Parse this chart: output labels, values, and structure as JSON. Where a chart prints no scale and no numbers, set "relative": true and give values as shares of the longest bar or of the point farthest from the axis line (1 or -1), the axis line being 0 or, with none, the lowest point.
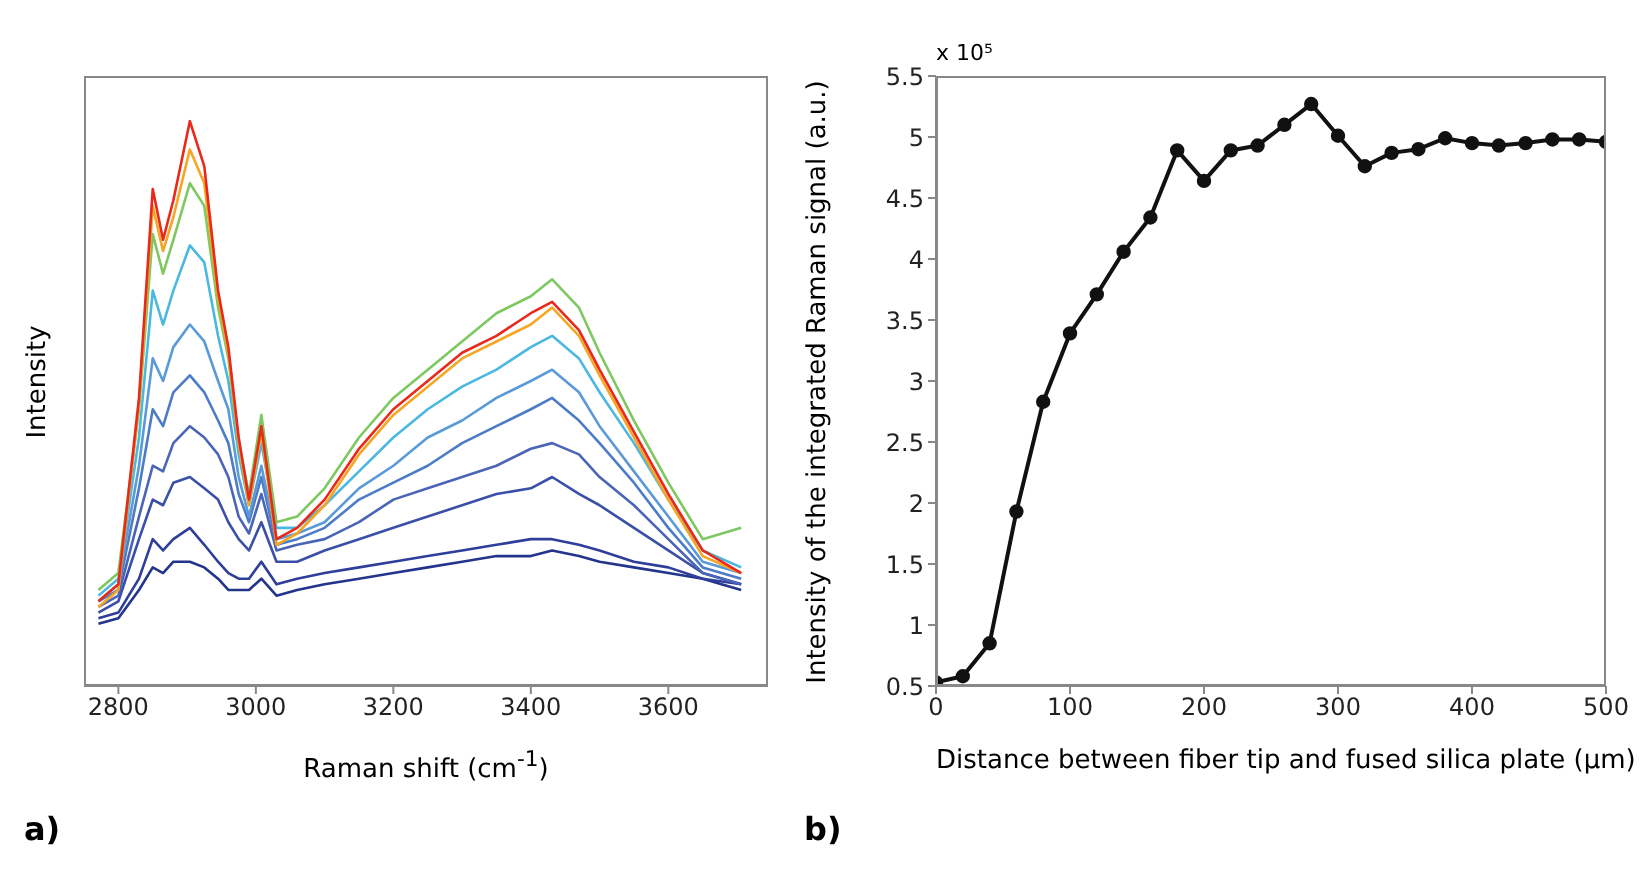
{
  "chart_data": [
    {
      "type": "line",
      "relative": true,
      "xlabel": "Raman shift (cm$^{-1}$)",
      "ylabel": "Intensity",
      "annotations": [
        "a)"
      ],
      "xlim": [
        2750,
        3745
      ],
      "xticks": [
        2800,
        3000,
        3200,
        3400,
        3600
      ],
      "tick_labels": "x",
      "grid": false,
      "legend": false,
      "marker": "none",
      "x": [
        2771,
        2800,
        2830,
        2850,
        2865,
        2880,
        2904,
        2925,
        2945,
        2960,
        2975,
        2990,
        3008,
        3030,
        3060,
        3100,
        3150,
        3200,
        3250,
        3300,
        3350,
        3400,
        3431,
        3470,
        3500,
        3550,
        3600,
        3650,
        3706
      ],
      "series": [
        {
          "color": "#22348c",
          "values": [
            0.11,
            0.12,
            0.17,
            0.21,
            0.2,
            0.22,
            0.22,
            0.21,
            0.19,
            0.17,
            0.17,
            0.17,
            0.19,
            0.16,
            0.17,
            0.18,
            0.19,
            0.2,
            0.21,
            0.22,
            0.23,
            0.23,
            0.24,
            0.23,
            0.22,
            0.21,
            0.2,
            0.19,
            0.17
          ]
        },
        {
          "color": "#2e3e9a",
          "values": [
            0.12,
            0.13,
            0.19,
            0.26,
            0.24,
            0.26,
            0.28,
            0.25,
            0.22,
            0.2,
            0.19,
            0.19,
            0.22,
            0.18,
            0.19,
            0.2,
            0.21,
            0.22,
            0.23,
            0.24,
            0.25,
            0.26,
            0.26,
            0.25,
            0.24,
            0.22,
            0.21,
            0.19,
            0.18
          ]
        },
        {
          "color": "#3a50a8",
          "values": [
            0.13,
            0.15,
            0.26,
            0.33,
            0.32,
            0.36,
            0.37,
            0.35,
            0.33,
            0.29,
            0.26,
            0.24,
            0.29,
            0.22,
            0.22,
            0.24,
            0.26,
            0.28,
            0.3,
            0.32,
            0.34,
            0.35,
            0.37,
            0.34,
            0.32,
            0.28,
            0.24,
            0.2,
            0.18
          ]
        },
        {
          "color": "#4a64b8",
          "values": [
            0.14,
            0.16,
            0.3,
            0.39,
            0.38,
            0.43,
            0.46,
            0.44,
            0.41,
            0.37,
            0.3,
            0.27,
            0.34,
            0.24,
            0.25,
            0.26,
            0.29,
            0.33,
            0.35,
            0.37,
            0.39,
            0.42,
            0.43,
            0.41,
            0.37,
            0.32,
            0.26,
            0.2,
            0.18
          ]
        },
        {
          "color": "#4c7cc8",
          "values": [
            0.15,
            0.17,
            0.35,
            0.49,
            0.46,
            0.52,
            0.55,
            0.52,
            0.47,
            0.43,
            0.34,
            0.29,
            0.37,
            0.25,
            0.26,
            0.28,
            0.33,
            0.36,
            0.39,
            0.43,
            0.46,
            0.49,
            0.51,
            0.47,
            0.43,
            0.36,
            0.28,
            0.21,
            0.19
          ]
        },
        {
          "color": "#5a9ad8",
          "values": [
            0.15,
            0.18,
            0.39,
            0.58,
            0.54,
            0.6,
            0.64,
            0.61,
            0.54,
            0.49,
            0.37,
            0.3,
            0.39,
            0.26,
            0.27,
            0.29,
            0.35,
            0.39,
            0.44,
            0.47,
            0.51,
            0.54,
            0.56,
            0.52,
            0.46,
            0.38,
            0.3,
            0.22,
            0.2
          ]
        },
        {
          "color": "#4ab8e0",
          "values": [
            0.16,
            0.19,
            0.44,
            0.7,
            0.64,
            0.7,
            0.78,
            0.75,
            0.62,
            0.54,
            0.41,
            0.32,
            0.43,
            0.28,
            0.28,
            0.32,
            0.38,
            0.44,
            0.49,
            0.53,
            0.56,
            0.6,
            0.62,
            0.58,
            0.52,
            0.43,
            0.33,
            0.24,
            0.21
          ]
        },
        {
          "color": "#7ec860",
          "values": [
            0.17,
            0.2,
            0.49,
            0.8,
            0.73,
            0.79,
            0.89,
            0.85,
            0.67,
            0.58,
            0.43,
            0.34,
            0.48,
            0.29,
            0.3,
            0.35,
            0.44,
            0.51,
            0.56,
            0.61,
            0.66,
            0.69,
            0.72,
            0.67,
            0.59,
            0.47,
            0.36,
            0.26,
            0.28
          ]
        },
        {
          "color": "#f5a623",
          "values": [
            0.14,
            0.17,
            0.5,
            0.85,
            0.77,
            0.83,
            0.95,
            0.89,
            0.69,
            0.59,
            0.43,
            0.32,
            0.45,
            0.25,
            0.27,
            0.32,
            0.41,
            0.48,
            0.53,
            0.58,
            0.61,
            0.64,
            0.67,
            0.62,
            0.55,
            0.44,
            0.33,
            0.23,
            0.2
          ]
        },
        {
          "color": "#e8291c",
          "values": [
            0.15,
            0.18,
            0.51,
            0.88,
            0.79,
            0.86,
            1,
            0.92,
            0.7,
            0.6,
            0.44,
            0.33,
            0.46,
            0.26,
            0.28,
            0.33,
            0.42,
            0.49,
            0.54,
            0.59,
            0.62,
            0.66,
            0.68,
            0.63,
            0.56,
            0.45,
            0.34,
            0.24,
            0.2
          ]
        }
      ]
    },
    {
      "type": "line",
      "xlabel": "Distance between fiber tip and fused silica plate (µm)",
      "ylabel": "Intensity of the integrated Raman signal (a.u.)",
      "annotations": [
        "x 10⁵",
        "b)"
      ],
      "xlim": [
        0,
        500
      ],
      "xticks": [
        0,
        100,
        200,
        300,
        400,
        500
      ],
      "ylim": [
        0.5,
        5.5
      ],
      "yticks": [
        0.5,
        1,
        1.5,
        2,
        2.5,
        3,
        3.5,
        4,
        4.5,
        5,
        5.5
      ],
      "grid": false,
      "legend": false,
      "marker": "circle",
      "x": [
        0,
        20,
        40,
        60,
        80,
        100,
        120,
        140,
        160,
        180,
        200,
        220,
        240,
        260,
        280,
        300,
        320,
        340,
        360,
        380,
        400,
        420,
        440,
        460,
        480,
        500
      ],
      "series": [
        {
          "color": "#111111",
          "values": [
            0.53,
            0.58,
            0.85,
            1.93,
            2.83,
            3.39,
            3.71,
            4.06,
            4.34,
            4.89,
            4.64,
            4.89,
            4.93,
            5.1,
            5.27,
            5.01,
            4.76,
            4.87,
            4.9,
            4.99,
            4.95,
            4.93,
            4.95,
            4.98,
            4.98,
            4.96
          ]
        }
      ]
    }
  ]
}
